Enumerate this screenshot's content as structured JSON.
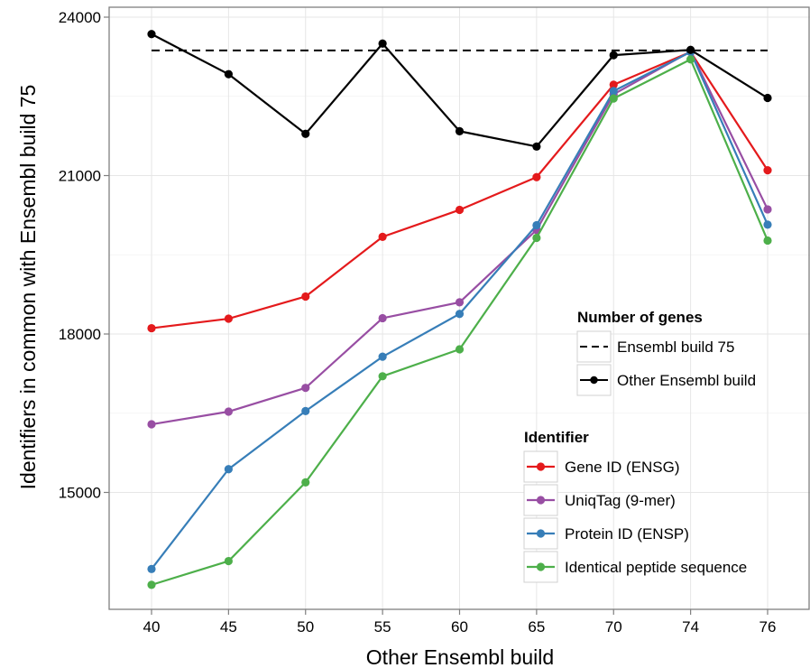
{
  "chart_data": {
    "type": "line",
    "title": "",
    "xlabel": "Other Ensembl build",
    "ylabel": "Identifiers in common with Ensembl build 75",
    "categories": [
      "40",
      "45",
      "50",
      "55",
      "60",
      "65",
      "70",
      "74",
      "76"
    ],
    "y_ticks": [
      15000,
      18000,
      21000,
      24000
    ],
    "y_tick_labels": [
      "15000",
      "18000",
      "21000",
      "24000"
    ],
    "ylim": [
      12500,
      24250
    ],
    "grid": true,
    "reference_line": {
      "name": "Ensembl build 75",
      "value": 23370,
      "style": "dashed",
      "color": "#000000"
    },
    "genes_series": {
      "name": "Other Ensembl build",
      "color": "#000000",
      "values": [
        23680,
        22920,
        21790,
        23500,
        21840,
        21550,
        23280,
        23380,
        22470
      ]
    },
    "series": [
      {
        "name": "Gene ID (ENSG)",
        "color": "#E41A1C",
        "values": [
          18110,
          18290,
          18710,
          19840,
          20350,
          20970,
          22720,
          23340,
          21100
        ]
      },
      {
        "name": "UniqTag (9-mer)",
        "color": "#984EA3",
        "values": [
          16290,
          16530,
          16980,
          18300,
          18600,
          19970,
          22540,
          23350,
          20360
        ]
      },
      {
        "name": "Protein ID (ENSP)",
        "color": "#377EB8",
        "values": [
          13550,
          15440,
          16540,
          17570,
          18380,
          20060,
          22600,
          23340,
          20070
        ]
      },
      {
        "name": "Identical peptide sequence",
        "color": "#4DAF4A",
        "values": [
          13250,
          13700,
          15190,
          17200,
          17710,
          19820,
          22460,
          23200,
          19770
        ]
      }
    ],
    "legends": [
      {
        "title": "Number of genes",
        "placement": "right-middle",
        "entries": [
          "Ensembl build 75",
          "Other Ensembl build"
        ]
      },
      {
        "title": "Identifier",
        "placement": "bottom-right",
        "entries": [
          "Gene ID (ENSG)",
          "UniqTag (9-mer)",
          "Protein ID (ENSP)",
          "Identical peptide sequence"
        ]
      }
    ]
  }
}
